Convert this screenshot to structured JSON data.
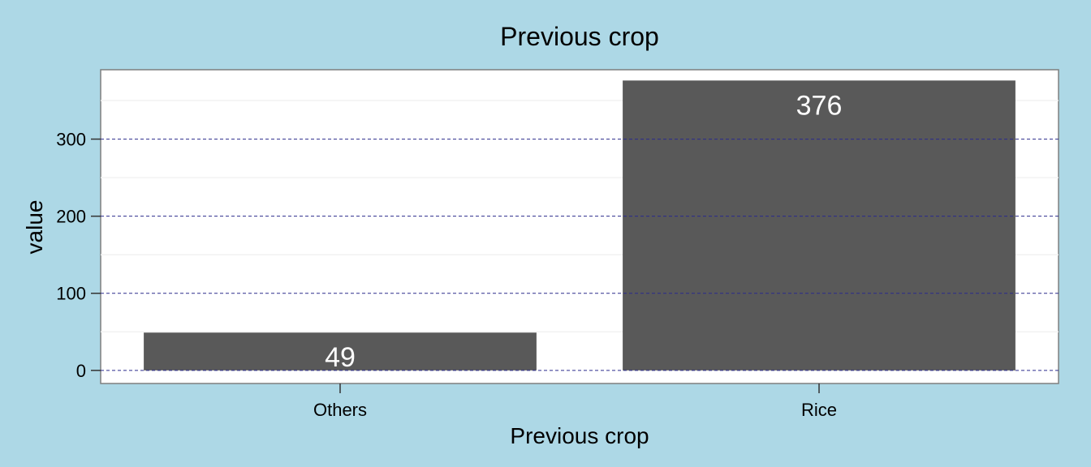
{
  "chart_data": {
    "type": "bar",
    "title": "Previous crop",
    "xlabel": "Previous crop",
    "ylabel": "value",
    "categories": [
      "Others",
      "Rice"
    ],
    "values": [
      49,
      376
    ],
    "data_labels": [
      "49",
      "376"
    ],
    "ylim": [
      -17,
      390
    ],
    "yticks": [
      0,
      100,
      200,
      300
    ],
    "ytick_labels": [
      "0",
      "100",
      "200",
      "300"
    ],
    "grid": true,
    "grid_style": "dashed",
    "legend": "none"
  },
  "colors": {
    "background": "#add8e6",
    "panel": "#ffffff",
    "bar": "#595959",
    "grid_major": "#2b2b8c",
    "grid_minor": "#f2f2f2",
    "data_label": "#ffffff"
  }
}
